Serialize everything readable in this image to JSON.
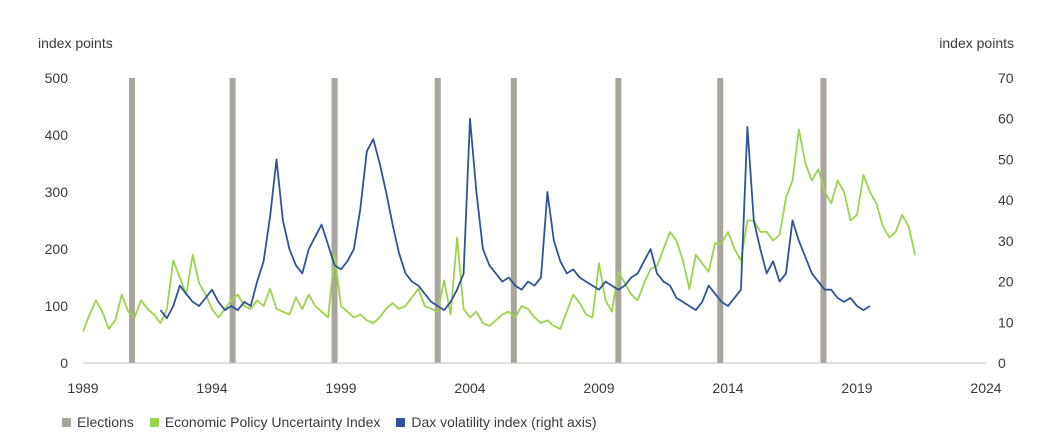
{
  "chart_data": {
    "type": "line",
    "left_axis_unit": "index points",
    "right_axis_unit": "index points",
    "left_ticks": [
      "500",
      "400",
      "300",
      "200",
      "100",
      "0"
    ],
    "right_ticks": [
      "70",
      "60",
      "50",
      "40",
      "30",
      "20",
      "10",
      "0"
    ],
    "x_ticks": [
      "1989",
      "1994",
      "1999",
      "2004",
      "2009",
      "2014",
      "2019",
      "2024"
    ],
    "ylim_left": [
      0,
      500
    ],
    "ylim_right": [
      0,
      70
    ],
    "xlim": [
      1989,
      2024
    ],
    "elections": [
      1990.9,
      1994.8,
      1998.75,
      2002.75,
      2005.7,
      2009.75,
      2013.7,
      2017.7
    ],
    "series": [
      {
        "name": "Economic Policy Uncertainty Index",
        "color": "#9bd44a",
        "axis": "left",
        "x_start": 1989,
        "step": 0.25,
        "values": [
          55,
          85,
          110,
          90,
          60,
          75,
          120,
          90,
          80,
          110,
          95,
          85,
          70,
          95,
          180,
          150,
          120,
          190,
          140,
          120,
          95,
          80,
          95,
          110,
          120,
          100,
          95,
          110,
          100,
          130,
          95,
          90,
          85,
          115,
          95,
          120,
          100,
          90,
          80,
          190,
          100,
          90,
          80,
          85,
          75,
          70,
          80,
          95,
          105,
          95,
          100,
          115,
          130,
          100,
          95,
          90,
          145,
          85,
          220,
          95,
          80,
          90,
          70,
          65,
          75,
          85,
          90,
          80,
          100,
          95,
          80,
          70,
          75,
          65,
          60,
          90,
          120,
          105,
          85,
          80,
          175,
          110,
          90,
          160,
          140,
          120,
          110,
          140,
          165,
          170,
          200,
          230,
          215,
          180,
          130,
          190,
          175,
          160,
          210,
          210,
          230,
          200,
          180,
          250,
          250,
          230,
          230,
          215,
          225,
          290,
          320,
          410,
          350,
          320,
          340,
          300,
          280,
          320,
          300,
          250,
          260,
          330,
          300,
          280,
          240,
          220,
          230,
          260,
          240,
          190
        ]
      },
      {
        "name": "Dax volatility index (right axis)",
        "color": "#2f5596",
        "axis": "right",
        "x_start": 1992,
        "step": 0.25,
        "values": [
          13,
          11,
          14,
          19,
          17,
          15,
          14,
          16,
          18,
          15,
          13,
          14,
          13,
          15,
          14,
          20,
          25,
          36,
          50,
          35,
          28,
          24,
          22,
          28,
          31,
          34,
          29,
          24,
          23,
          25,
          28,
          38,
          52,
          55,
          49,
          42,
          34,
          27,
          22,
          20,
          19,
          17,
          15,
          14,
          13,
          15,
          18,
          22,
          60,
          42,
          28,
          24,
          22,
          20,
          21,
          19,
          18,
          20,
          19,
          21,
          42,
          30,
          25,
          22,
          23,
          21,
          20,
          19,
          18,
          20,
          19,
          18,
          19,
          21,
          22,
          25,
          28,
          22,
          20,
          19,
          16,
          15,
          14,
          13,
          15,
          19,
          17,
          15,
          14,
          16,
          18,
          58,
          35,
          28,
          22,
          25,
          20,
          22,
          35,
          30,
          26,
          22,
          20,
          18,
          18,
          16,
          15,
          16,
          14,
          13,
          14
        ]
      }
    ]
  },
  "legend": {
    "elections": {
      "label": "Elections",
      "color": "#aaa59c"
    },
    "epu": {
      "label": "Economic Policy Uncertainty Index",
      "color": "#9bd44a"
    },
    "vdax": {
      "label": "Dax volatility index (right axis)",
      "color": "#2f5596"
    }
  }
}
